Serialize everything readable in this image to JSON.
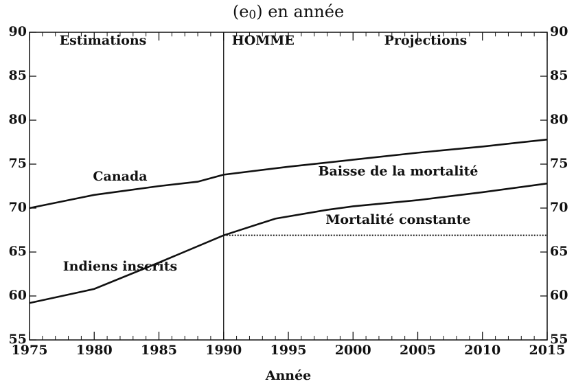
{
  "chart_data": {
    "type": "line",
    "title": [
      "(e",
      "0",
      ") en année"
    ],
    "x_label": "Année",
    "xlim": [
      1975,
      2015
    ],
    "xticks": [
      1975,
      1980,
      1985,
      1990,
      1995,
      2000,
      2005,
      2010,
      2015
    ],
    "xticks_minor": [
      1976,
      1977,
      1978,
      1979,
      1981,
      1982,
      1983,
      1984,
      1986,
      1987,
      1988,
      1989,
      1991,
      1992,
      1993,
      1994,
      1996,
      1997,
      1998,
      1999,
      2001,
      2002,
      2003,
      2004,
      2006,
      2007,
      2008,
      2009,
      2011,
      2012,
      2013,
      2014
    ],
    "ylim": [
      55,
      90
    ],
    "yticks": [
      55,
      60,
      65,
      70,
      75,
      80,
      85,
      90
    ],
    "divider_x": 1990,
    "annotations": [
      "Estimations",
      "HOMME",
      "Projections"
    ],
    "series": [
      {
        "name": "Canada",
        "color": "#111111",
        "style": "solid",
        "x": [
          1975,
          1980,
          1982,
          1985,
          1988,
          1990,
          1995,
          2000,
          2005,
          2010,
          2015
        ],
        "values": [
          70.0,
          71.5,
          71.9,
          72.5,
          73.0,
          73.8,
          74.7,
          75.5,
          76.3,
          77.0,
          77.8
        ]
      },
      {
        "name": "Indiens inscrits",
        "color": "#111111",
        "style": "solid",
        "x": [
          1975,
          1980,
          1985,
          1990
        ],
        "values": [
          59.2,
          60.8,
          63.8,
          66.9
        ]
      },
      {
        "name": "Baisse de la mortalité",
        "color": "#111111",
        "style": "solid",
        "x": [
          1990,
          1994,
          1998,
          2000,
          2005,
          2010,
          2015
        ],
        "values": [
          66.9,
          68.8,
          69.8,
          70.2,
          70.9,
          71.8,
          72.8
        ]
      },
      {
        "name": "Mortalité constante",
        "color": "#111111",
        "style": "dotted",
        "x": [
          1990,
          2015
        ],
        "values": [
          66.9,
          66.9
        ]
      }
    ]
  }
}
